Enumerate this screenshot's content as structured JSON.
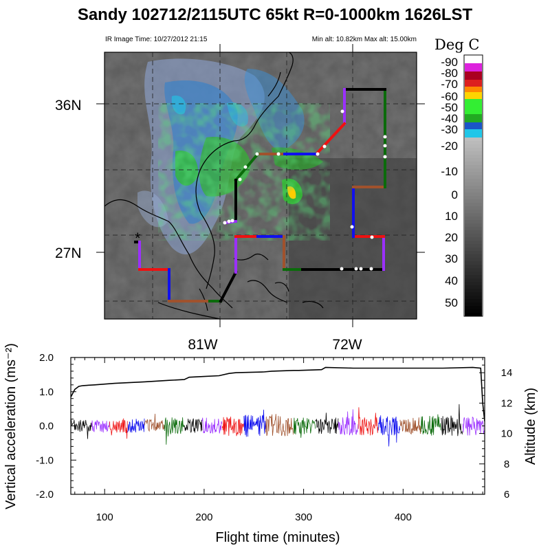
{
  "header": {
    "title": "Sandy 102712/2115UTC 65kt  R=0-1000km 1626LST",
    "ir_time": "IR Image Time: 10/27/2012 21:15",
    "alt_range": "Min alt: 10.82km  Max alt: 15.00km"
  },
  "map": {
    "lat_labels": [
      "36N",
      "27N"
    ],
    "lon_labels": [
      "81W",
      "72W"
    ],
    "colorbar": {
      "title": "Deg C",
      "labels": [
        "-90",
        "-80",
        "-70",
        "-60",
        "-50",
        "-40",
        "-30",
        "-20",
        "-10",
        "0",
        "10",
        "20",
        "30",
        "40",
        "50"
      ],
      "colors": [
        "#ffffff",
        "#dd22dd",
        "#aa0020",
        "#dd1f1f",
        "#ff8800",
        "#ffd400",
        "#22aa22",
        "#33ee33",
        "#1a55c8",
        "#20c6e8",
        "#9d9d9d",
        "#000000"
      ]
    },
    "flight_track": {
      "segment_colors": [
        "#000000",
        "#9b30ff",
        "#ee1111",
        "#1010ee",
        "#a0522d",
        "#0b6b0b",
        "#000000",
        "#9b30ff",
        "#ee1111",
        "#1010ee",
        "#a0522d",
        "#0b6b0b",
        "#000000",
        "#9b30ff",
        "#ee1111",
        "#1010ee",
        "#a0522d",
        "#0b6b0b",
        "#000000",
        "#9b30ff",
        "#ee1111",
        "#1010ee",
        "#a0522d",
        "#0b6b0b",
        "#000000",
        "#9b30ff",
        "#ee1111"
      ]
    }
  },
  "chart_data": {
    "type": "line",
    "xlabel": "Flight time (minutes)",
    "ylabel": "Vertical acceleration (ms⁻²)",
    "ylabel_right": "Altitude (km)",
    "xlim": [
      66,
      482
    ],
    "ylim": [
      -2.0,
      2.0
    ],
    "ylim_right": [
      6,
      15
    ],
    "x_ticks": [
      "100",
      "200",
      "300",
      "400"
    ],
    "y_ticks": [
      "2.0",
      "1.0",
      "0.0",
      "-1.0",
      "-2.0"
    ],
    "y_right_ticks": [
      "14",
      "12",
      "10",
      "8",
      "6"
    ],
    "series": [
      {
        "x": [
          66,
          70,
          74,
          78,
          90,
          110,
          140,
          165,
          180,
          185,
          200,
          215,
          225,
          232,
          260,
          268,
          290,
          295,
          318,
          322,
          350,
          380,
          400,
          420,
          440,
          470,
          478,
          480,
          482
        ],
        "y": [
          12.4,
          12.9,
          13.1,
          13.15,
          13.2,
          13.3,
          13.4,
          13.5,
          13.55,
          13.7,
          13.75,
          13.8,
          13.95,
          14.0,
          14.05,
          14.1,
          14.15,
          14.15,
          14.2,
          14.35,
          14.3,
          14.3,
          14.3,
          14.3,
          14.3,
          14.35,
          14.3,
          12.0,
          10.8
        ]
      }
    ],
    "accel_segments": {
      "boundaries": [
        66,
        87,
        105,
        123,
        140,
        160,
        180,
        198,
        218,
        240,
        262,
        290,
        312,
        335,
        355,
        375,
        397,
        418,
        438,
        460,
        482
      ],
      "amplitude": [
        0.18,
        0.2,
        0.22,
        0.22,
        0.2,
        0.25,
        0.22,
        0.25,
        0.3,
        0.32,
        0.3,
        0.25,
        0.25,
        0.28,
        0.28,
        0.28,
        0.25,
        0.3,
        0.3,
        0.3
      ]
    }
  }
}
